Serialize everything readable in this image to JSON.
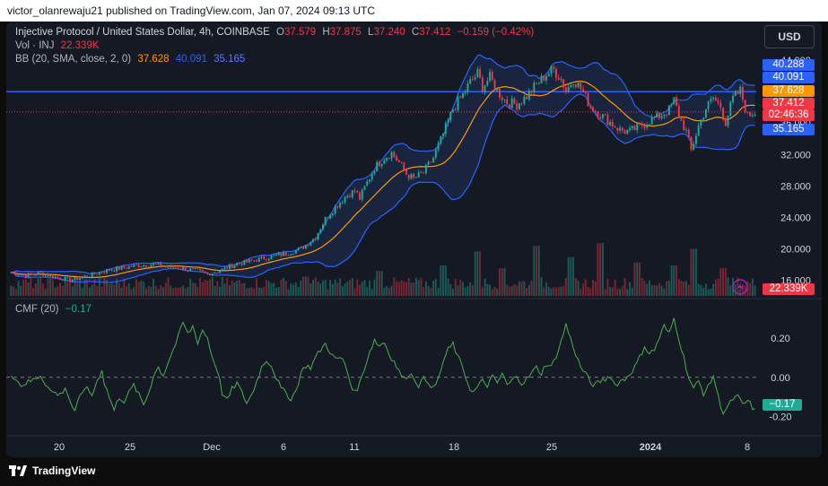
{
  "header": {
    "published": "victor_olanrewaju21 published on TradingView.com, Jan 07, 2024 09:13 UTC"
  },
  "legend": {
    "symbol": "Injective Protocol / United States Dollar, 4h, COINBASE",
    "o_label": "O",
    "o": "37.579",
    "h_label": "H",
    "h": "37.875",
    "l_label": "L",
    "l": "37.240",
    "c_label": "C",
    "c": "37.412",
    "change": "−0.159 (−0.42%)",
    "vol_label": "Vol · INJ",
    "vol": "22.339K",
    "bb_label": "BB (20, SMA, close, 2, 0)",
    "bb_basis": "37.628",
    "bb_upper": "40.091",
    "bb_lower": "35.165",
    "cmf_label": "CMF (20)",
    "cmf": "−0.17"
  },
  "currency_button": "USD",
  "price_badges": {
    "upper_high": "40.288",
    "upper": "40.091",
    "basis": "37.628",
    "last": "37.412",
    "countdown": "02:46:36",
    "lower": "35.165",
    "volume": "22.339K",
    "cmf": "−0.17"
  },
  "footer": {
    "logo_text": "TradingView"
  },
  "colors": {
    "up": "#22ab94",
    "down": "#f23645",
    "basis": "#ff9800",
    "band": "#2962ff",
    "band_fill": "#1e2f55",
    "cmf": "#4caf50",
    "hline": "#2962ff"
  },
  "chart_data": {
    "type": "candlestick",
    "price_axis": {
      "ticks": [
        "44.000",
        "40.000",
        "36.000",
        "32.000",
        "28.000",
        "24.000",
        "20.000",
        "16.000"
      ],
      "range": [
        14.0,
        45.5
      ]
    },
    "time_axis": {
      "ticks": [
        "20",
        "25",
        "Dec",
        "6",
        "11",
        "18",
        "25",
        "2024",
        "8"
      ]
    },
    "cmf_axis": {
      "ticks": [
        "0.20",
        "0.00",
        "-0.20"
      ],
      "range": [
        -0.28,
        0.36
      ]
    },
    "horizontal_line": 40.0,
    "close_path": [
      [
        0,
        17.0
      ],
      [
        6,
        16.6
      ],
      [
        12,
        16.9
      ],
      [
        18,
        16.4
      ],
      [
        24,
        16.0
      ],
      [
        28,
        16.3
      ],
      [
        34,
        16.8
      ],
      [
        40,
        17.3
      ],
      [
        46,
        17.6
      ],
      [
        52,
        17.9
      ],
      [
        58,
        18.0
      ],
      [
        64,
        17.7
      ],
      [
        70,
        17.5
      ],
      [
        75,
        17.2
      ],
      [
        80,
        16.8
      ],
      [
        84,
        17.1
      ],
      [
        88,
        17.6
      ],
      [
        92,
        18.1
      ],
      [
        96,
        18.3
      ],
      [
        100,
        18.6
      ],
      [
        106,
        19.0
      ],
      [
        112,
        19.4
      ],
      [
        118,
        20.0
      ],
      [
        124,
        21.5
      ],
      [
        128,
        23.8
      ],
      [
        132,
        25.3
      ],
      [
        136,
        26.6
      ],
      [
        140,
        27.4
      ],
      [
        142,
        26.4
      ],
      [
        144,
        27.8
      ],
      [
        148,
        30.3
      ],
      [
        152,
        31.6
      ],
      [
        155,
        32.2
      ],
      [
        158,
        31.0
      ],
      [
        161,
        29.5
      ],
      [
        164,
        28.9
      ],
      [
        168,
        29.7
      ],
      [
        172,
        31.6
      ],
      [
        176,
        34.6
      ],
      [
        180,
        37.8
      ],
      [
        184,
        39.6
      ],
      [
        187,
        41.2
      ],
      [
        190,
        42.3
      ],
      [
        192,
        40.6
      ],
      [
        195,
        41.8
      ],
      [
        198,
        40.1
      ],
      [
        202,
        38.6
      ],
      [
        206,
        38.4
      ],
      [
        210,
        39.4
      ],
      [
        214,
        40.9
      ],
      [
        218,
        42.2
      ],
      [
        221,
        42.8
      ],
      [
        224,
        41.6
      ],
      [
        226,
        40.1
      ],
      [
        229,
        41.6
      ],
      [
        232,
        40.4
      ],
      [
        236,
        38.1
      ],
      [
        240,
        37.1
      ],
      [
        244,
        36.1
      ],
      [
        248,
        35.1
      ],
      [
        252,
        34.9
      ],
      [
        256,
        35.6
      ],
      [
        260,
        36.3
      ],
      [
        264,
        36.9
      ],
      [
        268,
        37.7
      ],
      [
        270,
        38.9
      ],
      [
        272,
        36.9
      ],
      [
        275,
        34.9
      ],
      [
        277,
        32.5
      ],
      [
        280,
        35.6
      ],
      [
        283,
        37.9
      ],
      [
        286,
        39.2
      ],
      [
        289,
        38.1
      ],
      [
        291,
        36.1
      ],
      [
        294,
        39.1
      ],
      [
        297,
        40.1
      ],
      [
        300,
        36.9
      ],
      [
        303,
        37.4
      ]
    ],
    "volume_spikes": [
      [
        120,
        0.35
      ],
      [
        150,
        0.45
      ],
      [
        176,
        0.55
      ],
      [
        190,
        0.8
      ],
      [
        200,
        0.5
      ],
      [
        214,
        0.9
      ],
      [
        228,
        0.7
      ],
      [
        240,
        0.95
      ],
      [
        255,
        0.6
      ],
      [
        270,
        0.55
      ],
      [
        278,
        0.85
      ],
      [
        290,
        0.5
      ]
    ],
    "cmf_values": [
      [
        0,
        0.02
      ],
      [
        4,
        -0.04
      ],
      [
        8,
        -0.02
      ],
      [
        12,
        0.01
      ],
      [
        16,
        -0.07
      ],
      [
        20,
        -0.09
      ],
      [
        22,
        -0.05
      ],
      [
        24,
        -0.12
      ],
      [
        26,
        -0.18
      ],
      [
        28,
        -0.1
      ],
      [
        30,
        -0.05
      ],
      [
        33,
        -0.09
      ],
      [
        35,
        -0.02
      ],
      [
        37,
        0.04
      ],
      [
        38,
        -0.03
      ],
      [
        40,
        -0.1
      ],
      [
        42,
        -0.17
      ],
      [
        44,
        -0.1
      ],
      [
        46,
        -0.12
      ],
      [
        48,
        -0.08
      ],
      [
        50,
        -0.04
      ],
      [
        52,
        -0.09
      ],
      [
        54,
        -0.14
      ],
      [
        56,
        -0.08
      ],
      [
        58,
        0.01
      ],
      [
        60,
        0.05
      ],
      [
        62,
        0.01
      ],
      [
        64,
        0.08
      ],
      [
        66,
        0.14
      ],
      [
        68,
        0.2
      ],
      [
        70,
        0.28
      ],
      [
        72,
        0.22
      ],
      [
        74,
        0.26
      ],
      [
        76,
        0.18
      ],
      [
        78,
        0.24
      ],
      [
        80,
        0.2
      ],
      [
        82,
        0.1
      ],
      [
        84,
        0.04
      ],
      [
        86,
        -0.08
      ],
      [
        88,
        -0.12
      ],
      [
        90,
        -0.06
      ],
      [
        92,
        -0.03
      ],
      [
        94,
        -0.08
      ],
      [
        96,
        -0.13
      ],
      [
        98,
        -0.09
      ],
      [
        100,
        -0.02
      ],
      [
        102,
        0.05
      ],
      [
        104,
        0.09
      ],
      [
        106,
        0.06
      ],
      [
        108,
        0.0
      ],
      [
        110,
        -0.06
      ],
      [
        112,
        -0.08
      ],
      [
        114,
        -0.11
      ],
      [
        116,
        -0.07
      ],
      [
        118,
        0.02
      ],
      [
        120,
        0.06
      ],
      [
        122,
        0.05
      ],
      [
        124,
        0.1
      ],
      [
        126,
        0.14
      ],
      [
        128,
        0.17
      ],
      [
        130,
        0.13
      ],
      [
        132,
        0.09
      ],
      [
        134,
        0.1
      ],
      [
        136,
        0.07
      ],
      [
        138,
        -0.02
      ],
      [
        140,
        -0.08
      ],
      [
        142,
        -0.03
      ],
      [
        144,
        0.05
      ],
      [
        146,
        0.13
      ],
      [
        148,
        0.19
      ],
      [
        150,
        0.16
      ],
      [
        152,
        0.18
      ],
      [
        154,
        0.12
      ],
      [
        156,
        0.08
      ],
      [
        158,
        0.03
      ],
      [
        160,
        -0.01
      ],
      [
        162,
        0.02
      ],
      [
        164,
        0.0
      ],
      [
        166,
        -0.04
      ],
      [
        168,
        -0.01
      ],
      [
        170,
        -0.02
      ],
      [
        172,
        -0.06
      ],
      [
        174,
        -0.01
      ],
      [
        176,
        0.08
      ],
      [
        178,
        0.14
      ],
      [
        180,
        0.17
      ],
      [
        182,
        0.1
      ],
      [
        184,
        0.05
      ],
      [
        186,
        -0.03
      ],
      [
        188,
        -0.08
      ],
      [
        190,
        -0.05
      ],
      [
        192,
        -0.02
      ],
      [
        194,
        -0.04
      ],
      [
        196,
        0.0
      ],
      [
        198,
        -0.03
      ],
      [
        200,
        0.02
      ],
      [
        202,
        -0.04
      ],
      [
        204,
        -0.02
      ],
      [
        206,
        0.01
      ],
      [
        208,
        -0.03
      ],
      [
        210,
        -0.01
      ],
      [
        212,
        0.02
      ],
      [
        214,
        0.05
      ],
      [
        216,
        0.02
      ],
      [
        218,
        0.07
      ],
      [
        220,
        0.05
      ],
      [
        222,
        0.11
      ],
      [
        224,
        0.18
      ],
      [
        226,
        0.27
      ],
      [
        228,
        0.19
      ],
      [
        230,
        0.12
      ],
      [
        232,
        0.05
      ],
      [
        234,
        0.02
      ],
      [
        236,
        -0.03
      ],
      [
        238,
        -0.04
      ],
      [
        240,
        -0.02
      ],
      [
        242,
        -0.01
      ],
      [
        244,
        0.01
      ],
      [
        246,
        -0.04
      ],
      [
        248,
        -0.02
      ],
      [
        250,
        -0.01
      ],
      [
        252,
        0.02
      ],
      [
        254,
        0.05
      ],
      [
        256,
        0.1
      ],
      [
        258,
        0.16
      ],
      [
        260,
        0.12
      ],
      [
        262,
        0.14
      ],
      [
        264,
        0.2
      ],
      [
        266,
        0.26
      ],
      [
        268,
        0.22
      ],
      [
        270,
        0.3
      ],
      [
        272,
        0.2
      ],
      [
        274,
        0.1
      ],
      [
        276,
        0.0
      ],
      [
        278,
        -0.06
      ],
      [
        280,
        -0.02
      ],
      [
        282,
        -0.08
      ],
      [
        284,
        -0.05
      ],
      [
        286,
        0.01
      ],
      [
        288,
        -0.1
      ],
      [
        290,
        -0.18
      ],
      [
        292,
        -0.15
      ],
      [
        294,
        -0.11
      ],
      [
        296,
        -0.1
      ],
      [
        298,
        -0.14
      ],
      [
        300,
        -0.12
      ],
      [
        303,
        -0.17
      ]
    ]
  }
}
